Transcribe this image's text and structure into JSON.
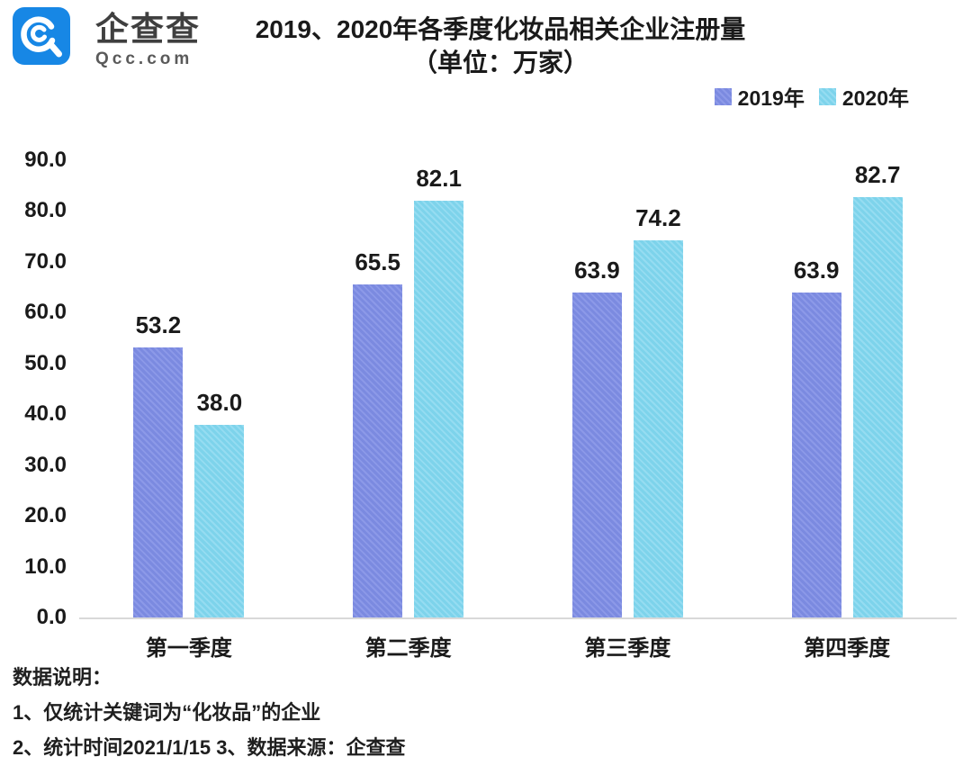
{
  "brand": {
    "name": "企查查",
    "domain": "Qcc.com",
    "logo_color": "#1787e5",
    "logo_icon": "magnifier-spiral"
  },
  "title": {
    "line1": "2019、2020年各季度化妆品相关企业注册量",
    "line2": "（单位：万家）"
  },
  "chart_data": {
    "type": "bar",
    "title": "2019、2020年各季度化妆品相关企业注册量",
    "subtitle": "（单位：万家）",
    "categories": [
      "第一季度",
      "第二季度",
      "第三季度",
      "第四季度"
    ],
    "series": [
      {
        "name": "2019年",
        "values": [
          53.2,
          65.5,
          63.9,
          63.9
        ],
        "color": "#7b8ae0",
        "stripe_color": "#8c99e8"
      },
      {
        "name": "2020年",
        "values": [
          38.0,
          82.1,
          74.2,
          82.7
        ],
        "color": "#7dd3eb",
        "stripe_color": "#95dcf1"
      }
    ],
    "xlabel": "",
    "ylabel": "",
    "ylim": [
      0,
      90
    ],
    "yticks": [
      0,
      10,
      20,
      30,
      40,
      50,
      60,
      70,
      80,
      90
    ],
    "ytick_decimals": 1,
    "value_labels": true,
    "value_label_decimals": 1,
    "grid": false,
    "legend_position": "top-right",
    "axis_line_color": "#d9d9d9",
    "text_color": "#1a1a1a"
  },
  "footer": {
    "notes": [
      "数据说明：",
      "1、仅统计关键词为“化妆品”的企业",
      "2、统计时间2021/1/15   3、数据来源：企查查"
    ]
  }
}
